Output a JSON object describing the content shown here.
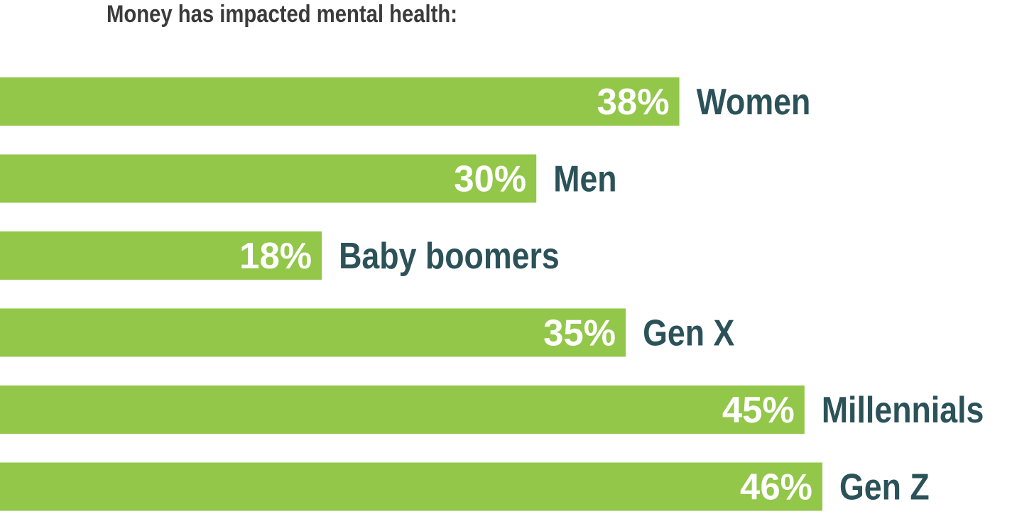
{
  "chart_data": {
    "type": "bar",
    "orientation": "horizontal",
    "title": "Money has impacted mental health:",
    "categories": [
      "Women",
      "Men",
      "Baby boomers",
      "Gen X",
      "Millennials",
      "Gen Z"
    ],
    "values": [
      38,
      30,
      18,
      35,
      45,
      46
    ],
    "value_labels": [
      "38%",
      "30%",
      "18%",
      "35%",
      "45%",
      "46%"
    ],
    "unit": "%",
    "grid": false,
    "colors": {
      "bar": "#92c749",
      "value_label": "#ffffff",
      "category_label": "#2c5259",
      "title": "#3b3b3b"
    }
  }
}
